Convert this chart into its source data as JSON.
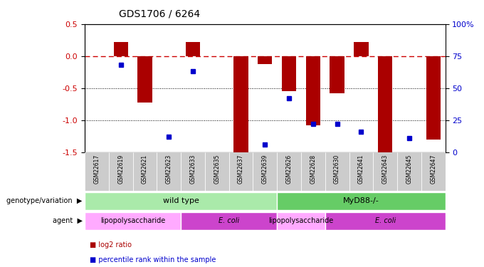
{
  "title": "GDS1706 / 6264",
  "samples": [
    "GSM22617",
    "GSM22619",
    "GSM22621",
    "GSM22623",
    "GSM22633",
    "GSM22635",
    "GSM22637",
    "GSM22639",
    "GSM22626",
    "GSM22628",
    "GSM22630",
    "GSM22641",
    "GSM22643",
    "GSM22645",
    "GSM22647"
  ],
  "log2_ratio": [
    0.0,
    0.22,
    -0.72,
    0.0,
    0.22,
    0.0,
    -1.52,
    -0.12,
    -0.55,
    -1.08,
    -0.58,
    0.22,
    -1.52,
    0.0,
    -1.3
  ],
  "percentile_raw": [
    0.0,
    0.68,
    0.0,
    0.12,
    0.63,
    0.0,
    0.0,
    0.06,
    0.42,
    0.22,
    0.22,
    0.16,
    0.0,
    0.11,
    0.0
  ],
  "ylim": [
    -1.5,
    0.5
  ],
  "yticks_left": [
    -1.5,
    -1.0,
    -0.5,
    0.0,
    0.5
  ],
  "yticks_right_pct": [
    0,
    25,
    50,
    75,
    100
  ],
  "bar_color": "#aa0000",
  "dot_color": "#0000cc",
  "dashed_line_color": "#cc0000",
  "bg_color": "#ffffff",
  "genotype_groups": [
    {
      "label": "wild type",
      "start": 0,
      "end": 8,
      "color": "#aaeaaa"
    },
    {
      "label": "MyD88-/-",
      "start": 8,
      "end": 15,
      "color": "#66cc66"
    }
  ],
  "agent_groups": [
    {
      "label": "lipopolysaccharide",
      "start": 0,
      "end": 4,
      "color": "#ffaaff"
    },
    {
      "label": "E. coli",
      "start": 4,
      "end": 8,
      "color": "#cc44cc"
    },
    {
      "label": "lipopolysaccharide",
      "start": 8,
      "end": 10,
      "color": "#ffaaff"
    },
    {
      "label": "E. coli",
      "start": 10,
      "end": 15,
      "color": "#cc44cc"
    }
  ],
  "legend_red_label": "log2 ratio",
  "legend_blue_label": "percentile rank within the sample",
  "left_label_geno": "genotype/variation",
  "left_label_agent": "agent",
  "sample_bg_color": "#cccccc",
  "bar_width": 0.6
}
